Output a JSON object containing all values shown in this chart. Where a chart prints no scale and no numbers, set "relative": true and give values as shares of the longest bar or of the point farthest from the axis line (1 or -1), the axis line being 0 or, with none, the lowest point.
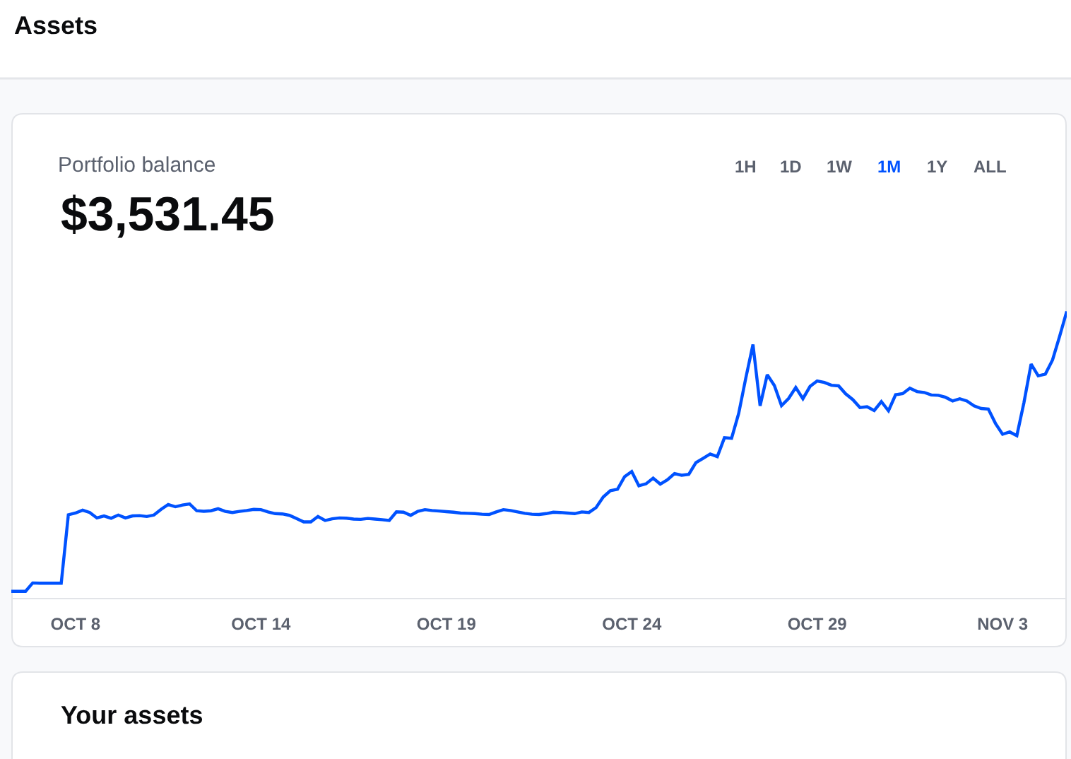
{
  "chart_data": {
    "type": "line",
    "title": "Portfolio balance",
    "subtitle": "$3,531.45",
    "annotations": [
      "Assets",
      "1H",
      "1D",
      "1W",
      "1M",
      "1Y",
      "ALL",
      "Your assets"
    ],
    "relative": true,
    "tick_labels": "x",
    "line_style": "solid",
    "categories": [
      null,
      null,
      null,
      null,
      null,
      null,
      null,
      null,
      null,
      "OCT 8",
      null,
      null,
      null,
      null,
      null,
      null,
      null,
      null,
      null,
      null,
      null,
      null,
      null,
      null,
      null,
      null,
      null,
      null,
      null,
      null,
      null,
      null,
      null,
      null,
      null,
      "OCT 14",
      null,
      null,
      null,
      null,
      null,
      null,
      null,
      null,
      null,
      null,
      null,
      null,
      null,
      null,
      null,
      null,
      null,
      null,
      null,
      null,
      null,
      null,
      null,
      null,
      null,
      "OCT 19",
      null,
      null,
      null,
      null,
      null,
      null,
      null,
      null,
      null,
      null,
      null,
      null,
      null,
      null,
      null,
      null,
      null,
      null,
      null,
      null,
      null,
      null,
      null,
      null,
      null,
      "OCT 24",
      null,
      null,
      null,
      null,
      null,
      null,
      null,
      null,
      null,
      null,
      null,
      null,
      null,
      null,
      null,
      null,
      null,
      null,
      null,
      null,
      null,
      null,
      null,
      null,
      null,
      "OCT 29",
      null,
      null,
      null,
      null,
      null,
      null,
      null,
      null,
      null,
      null,
      null,
      null,
      null,
      null,
      null,
      null,
      null,
      null,
      null,
      null,
      null,
      null,
      null,
      null,
      null,
      "NOV 3",
      null,
      null,
      null,
      null,
      null,
      null,
      null,
      null,
      null
    ],
    "series": [
      {
        "color": "#0052ff",
        "values": [
          0.023,
          0.023,
          0.023,
          0.052,
          0.051,
          0.051,
          0.051,
          0.051,
          0.29,
          0.296,
          0.306,
          0.298,
          0.279,
          0.286,
          0.278,
          0.289,
          0.279,
          0.286,
          0.287,
          0.284,
          0.289,
          0.309,
          0.326,
          0.318,
          0.324,
          0.328,
          0.304,
          0.302,
          0.304,
          0.311,
          0.302,
          0.298,
          0.302,
          0.305,
          0.309,
          0.308,
          0.3,
          0.294,
          0.293,
          0.288,
          0.277,
          0.265,
          0.265,
          0.284,
          0.27,
          0.276,
          0.279,
          0.278,
          0.275,
          0.274,
          0.277,
          0.275,
          0.273,
          0.27,
          0.3,
          0.299,
          0.288,
          0.302,
          0.308,
          0.305,
          0.303,
          0.301,
          0.299,
          0.296,
          0.295,
          0.294,
          0.292,
          0.291,
          0.3,
          0.308,
          0.305,
          0.3,
          0.295,
          0.292,
          0.291,
          0.294,
          0.299,
          0.298,
          0.296,
          0.294,
          0.3,
          0.298,
          0.315,
          0.352,
          0.374,
          0.379,
          0.423,
          0.441,
          0.391,
          0.398,
          0.418,
          0.397,
          0.412,
          0.434,
          0.428,
          0.431,
          0.472,
          0.487,
          0.502,
          0.493,
          0.559,
          0.557,
          0.644,
          0.768,
          0.884,
          0.67,
          0.779,
          0.741,
          0.671,
          0.696,
          0.734,
          0.695,
          0.738,
          0.757,
          0.752,
          0.742,
          0.74,
          0.712,
          0.692,
          0.664,
          0.667,
          0.654,
          0.685,
          0.653,
          0.709,
          0.713,
          0.732,
          0.72,
          0.717,
          0.708,
          0.707,
          0.7,
          0.687,
          0.695,
          0.687,
          0.67,
          0.661,
          0.659,
          0.609,
          0.571,
          0.579,
          0.566,
          0.682,
          0.816,
          0.775,
          0.781,
          0.83,
          0.913,
          1.0
        ]
      }
    ]
  }
}
